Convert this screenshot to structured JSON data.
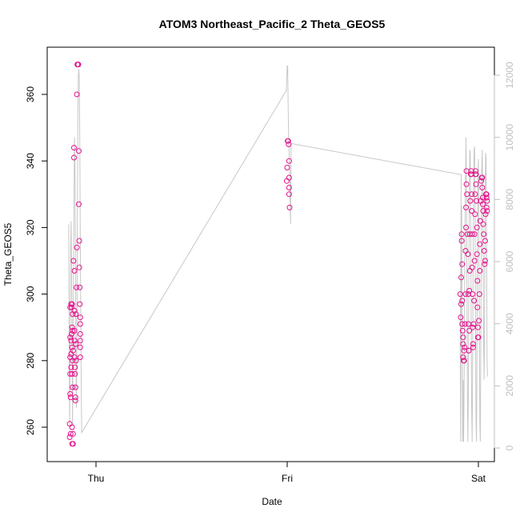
{
  "chart_data": {
    "type": "scatter",
    "title": "ATOM3 Northeast_Pacific_2 Theta_GEOS5",
    "xlabel": "Date",
    "ylabel": "Theta_GEOS5",
    "x_ticks": [
      "Thu",
      "Fri",
      "Sat"
    ],
    "ylim": [
      250,
      372
    ],
    "y_ticks": [
      260,
      280,
      300,
      320,
      340,
      360
    ],
    "y2lim": [
      -300,
      12800
    ],
    "y2_ticks": [
      0,
      2000,
      4000,
      6000,
      8000,
      10000,
      12000
    ],
    "grid": false,
    "colors": {
      "points": "#e6128c",
      "altitude_line": "#c8c8c8",
      "right_axis": "#c0c0c0"
    },
    "series": [
      {
        "role": "points",
        "points": [
          [
            -0.55,
            257
          ],
          [
            -0.55,
            261
          ],
          [
            -0.54,
            270
          ],
          [
            -0.54,
            276
          ],
          [
            -0.54,
            281
          ],
          [
            -0.54,
            287
          ],
          [
            -0.54,
            296
          ],
          [
            -0.53,
            258
          ],
          [
            -0.53,
            269
          ],
          [
            -0.52,
            297
          ],
          [
            -0.52,
            286
          ],
          [
            -0.52,
            278
          ],
          [
            -0.52,
            282
          ],
          [
            -0.51,
            288
          ],
          [
            -0.51,
            296
          ],
          [
            -0.5,
            297
          ],
          [
            -0.5,
            290
          ],
          [
            -0.5,
            284
          ],
          [
            -0.5,
            276
          ],
          [
            -0.5,
            260
          ],
          [
            -0.5,
            255
          ],
          [
            -0.49,
            272
          ],
          [
            -0.49,
            280
          ],
          [
            -0.49,
            289
          ],
          [
            -0.49,
            294
          ],
          [
            -0.48,
            255
          ],
          [
            -0.48,
            258
          ],
          [
            -0.48,
            283
          ],
          [
            -0.47,
            310
          ],
          [
            -0.46,
            344
          ],
          [
            -0.46,
            341
          ],
          [
            -0.45,
            307
          ],
          [
            -0.45,
            295
          ],
          [
            -0.45,
            286
          ],
          [
            -0.45,
            281
          ],
          [
            -0.45,
            289
          ],
          [
            -0.44,
            278
          ],
          [
            -0.44,
            276
          ],
          [
            -0.43,
            269
          ],
          [
            -0.43,
            268
          ],
          [
            -0.43,
            272
          ],
          [
            -0.42,
            280
          ],
          [
            -0.42,
            285
          ],
          [
            -0.42,
            294
          ],
          [
            -0.41,
            302
          ],
          [
            -0.4,
            314
          ],
          [
            -0.4,
            360
          ],
          [
            -0.39,
            369
          ],
          [
            -0.38,
            369
          ],
          [
            -0.37,
            369
          ],
          [
            -0.36,
            343
          ],
          [
            -0.36,
            327
          ],
          [
            -0.35,
            316
          ],
          [
            -0.35,
            308
          ],
          [
            -0.34,
            302
          ],
          [
            -0.34,
            297
          ],
          [
            -0.33,
            293
          ],
          [
            -0.33,
            291
          ],
          [
            -0.33,
            288
          ],
          [
            -0.33,
            286
          ],
          [
            -0.33,
            284
          ],
          [
            -0.33,
            281
          ],
          [
            3.99,
            334
          ],
          [
            4.0,
            338
          ],
          [
            4.01,
            346
          ],
          [
            4.02,
            346
          ],
          [
            4.03,
            345
          ],
          [
            4.04,
            340
          ],
          [
            4.04,
            335
          ],
          [
            4.04,
            332
          ],
          [
            4.04,
            330
          ],
          [
            4.05,
            326
          ],
          [
            7.62,
            300
          ],
          [
            7.63,
            293
          ],
          [
            7.64,
            297
          ],
          [
            7.64,
            305
          ],
          [
            7.65,
            316
          ],
          [
            7.65,
            318
          ],
          [
            7.66,
            309
          ],
          [
            7.66,
            298
          ],
          [
            7.66,
            291
          ],
          [
            7.67,
            289
          ],
          [
            7.68,
            287
          ],
          [
            7.68,
            285
          ],
          [
            7.68,
            281
          ],
          [
            7.69,
            280
          ],
          [
            7.7,
            280
          ],
          [
            7.7,
            283
          ],
          [
            7.71,
            284
          ],
          [
            7.72,
            291
          ],
          [
            7.73,
            300
          ],
          [
            7.73,
            313
          ],
          [
            7.74,
            320
          ],
          [
            7.74,
            326
          ],
          [
            7.75,
            333
          ],
          [
            7.75,
            337
          ],
          [
            7.76,
            330
          ],
          [
            7.77,
            318
          ],
          [
            7.78,
            312
          ],
          [
            7.79,
            300
          ],
          [
            7.79,
            291
          ],
          [
            7.8,
            283
          ],
          [
            7.8,
            283
          ],
          [
            7.81,
            289
          ],
          [
            7.81,
            301
          ],
          [
            7.82,
            307
          ],
          [
            7.82,
            318
          ],
          [
            7.83,
            328
          ],
          [
            7.84,
            336
          ],
          [
            7.85,
            337
          ],
          [
            7.85,
            336
          ],
          [
            7.86,
            330
          ],
          [
            7.86,
            325
          ],
          [
            7.87,
            318
          ],
          [
            7.87,
            308
          ],
          [
            7.88,
            300
          ],
          [
            7.88,
            290
          ],
          [
            7.89,
            284
          ],
          [
            7.89,
            285
          ],
          [
            7.9,
            291
          ],
          [
            7.91,
            298
          ],
          [
            7.92,
            310
          ],
          [
            7.92,
            318
          ],
          [
            7.93,
            324
          ],
          [
            7.93,
            330
          ],
          [
            7.94,
            336
          ],
          [
            7.94,
            337
          ],
          [
            7.95,
            336
          ],
          [
            7.95,
            333
          ],
          [
            7.96,
            328
          ],
          [
            7.97,
            320
          ],
          [
            7.97,
            312
          ],
          [
            7.98,
            304
          ],
          [
            7.98,
            296
          ],
          [
            7.99,
            290
          ],
          [
            7.99,
            287
          ],
          [
            8.0,
            287
          ],
          [
            8.01,
            292
          ],
          [
            8.02,
            300
          ],
          [
            8.03,
            307
          ],
          [
            8.03,
            315
          ],
          [
            8.04,
            322
          ],
          [
            8.05,
            328
          ],
          [
            8.06,
            334
          ],
          [
            8.07,
            335
          ],
          [
            8.08,
            335
          ],
          [
            8.08,
            332
          ],
          [
            8.09,
            329
          ],
          [
            8.09,
            327
          ],
          [
            8.1,
            325
          ],
          [
            8.1,
            321
          ],
          [
            8.11,
            318
          ],
          [
            8.12,
            313
          ],
          [
            8.13,
            309
          ],
          [
            8.14,
            310
          ],
          [
            8.14,
            316
          ],
          [
            8.15,
            324
          ],
          [
            8.16,
            330
          ],
          [
            8.16,
            330
          ],
          [
            8.17,
            330
          ],
          [
            8.17,
            329
          ],
          [
            8.17,
            329
          ],
          [
            8.17,
            326
          ],
          [
            8.18,
            328
          ],
          [
            8.18,
            325
          ]
        ]
      },
      {
        "role": "altitude_line",
        "axis": "right",
        "points": [
          [
            -0.57,
            7200
          ],
          [
            -0.56,
            3000
          ],
          [
            -0.55,
            700
          ],
          [
            -0.54,
            3500
          ],
          [
            -0.53,
            6400
          ],
          [
            -0.52,
            7300
          ],
          [
            -0.51,
            5600
          ],
          [
            -0.5,
            3000
          ],
          [
            -0.49,
            700
          ],
          [
            -0.48,
            3800
          ],
          [
            -0.47,
            6000
          ],
          [
            -0.46,
            7700
          ],
          [
            -0.45,
            10000
          ],
          [
            -0.44,
            9200
          ],
          [
            -0.43,
            6200
          ],
          [
            -0.42,
            3100
          ],
          [
            -0.41,
            1300
          ],
          [
            -0.4,
            3300
          ],
          [
            -0.39,
            7400
          ],
          [
            -0.38,
            10500
          ],
          [
            -0.37,
            12000
          ],
          [
            -0.36,
            12200
          ],
          [
            -0.35,
            11900
          ],
          [
            -0.34,
            10000
          ],
          [
            -0.33,
            7000
          ],
          [
            -0.32,
            4500
          ],
          [
            -0.31,
            2100
          ],
          [
            -0.3,
            500
          ],
          [
            3.98,
            11500
          ],
          [
            4.0,
            12300
          ],
          [
            4.01,
            12300
          ],
          [
            4.02,
            11000
          ],
          [
            4.03,
            10000
          ],
          [
            4.04,
            9500
          ],
          [
            4.05,
            9000
          ],
          [
            4.06,
            8000
          ],
          [
            4.07,
            7200
          ],
          [
            4.08,
            9800
          ],
          [
            7.64,
            8800
          ],
          [
            7.62,
            3200
          ],
          [
            7.63,
            200
          ],
          [
            7.64,
            6500
          ],
          [
            7.65,
            7800
          ],
          [
            7.66,
            4200
          ],
          [
            7.67,
            200
          ],
          [
            7.68,
            2200
          ],
          [
            7.69,
            200
          ],
          [
            7.7,
            1800
          ],
          [
            7.71,
            4500
          ],
          [
            7.72,
            7000
          ],
          [
            7.73,
            8800
          ],
          [
            7.74,
            10000
          ],
          [
            7.75,
            8300
          ],
          [
            7.76,
            5000
          ],
          [
            7.77,
            1800
          ],
          [
            7.78,
            200
          ],
          [
            7.79,
            2000
          ],
          [
            7.8,
            5200
          ],
          [
            7.81,
            8000
          ],
          [
            7.82,
            9600
          ],
          [
            7.83,
            9500
          ],
          [
            7.84,
            7500
          ],
          [
            7.85,
            4000
          ],
          [
            7.86,
            1200
          ],
          [
            7.87,
            200
          ],
          [
            7.88,
            2600
          ],
          [
            7.89,
            6000
          ],
          [
            7.9,
            8500
          ],
          [
            7.91,
            9600
          ],
          [
            7.92,
            9700
          ],
          [
            7.93,
            7800
          ],
          [
            7.94,
            4200
          ],
          [
            7.95,
            900
          ],
          [
            7.96,
            200
          ],
          [
            7.97,
            2800
          ],
          [
            7.98,
            6400
          ],
          [
            7.99,
            8800
          ],
          [
            8.0,
            9300
          ],
          [
            8.01,
            7000
          ],
          [
            8.02,
            3800
          ],
          [
            8.03,
            800
          ],
          [
            8.04,
            200
          ],
          [
            8.05,
            3000
          ],
          [
            8.06,
            6600
          ],
          [
            8.07,
            9000
          ],
          [
            8.08,
            9600
          ],
          [
            8.09,
            8400
          ],
          [
            8.1,
            5800
          ],
          [
            8.11,
            3200
          ],
          [
            8.12,
            2200
          ],
          [
            8.13,
            4500
          ],
          [
            8.14,
            7800
          ],
          [
            8.15,
            9500
          ],
          [
            8.16,
            9300
          ],
          [
            8.17,
            6800
          ],
          [
            8.18,
            3000
          ],
          [
            8.19,
            2300
          ]
        ]
      }
    ],
    "x_tick_positions": [
      0,
      4,
      8
    ],
    "xlim": [
      -0.75,
      8.35
    ]
  }
}
